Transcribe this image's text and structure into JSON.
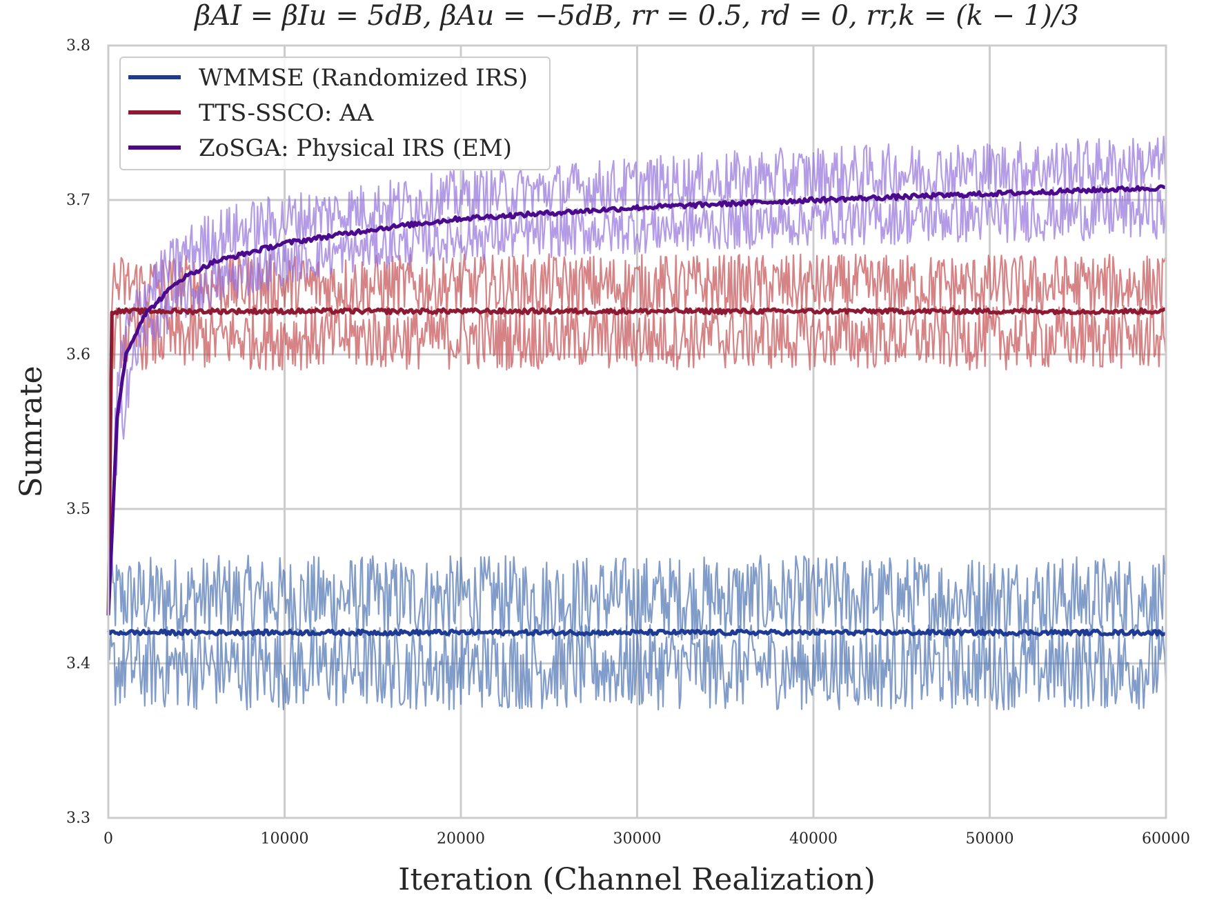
{
  "chart_data": {
    "type": "line",
    "title": "βAI = βIu = 5dB, βAu = −5dB, rr = 0.5, rd = 0, rr,k = (k − 1)/3",
    "xlabel": "Iteration (Channel Realization)",
    "ylabel": "Sumrate",
    "xlim": [
      0,
      60000
    ],
    "ylim": [
      3.3,
      3.8
    ],
    "xticks": [
      "0",
      "10000",
      "20000",
      "30000",
      "40000",
      "50000",
      "60000"
    ],
    "yticks": [
      "3.3",
      "3.4",
      "3.5",
      "3.6",
      "3.7",
      "3.8"
    ],
    "grid": true,
    "legend_position": "top-left",
    "series": [
      {
        "name": "WMMSE (Randomized IRS)",
        "color": "#1f3a93",
        "band_color": "#4c72b0",
        "x": [
          0,
          10000,
          20000,
          30000,
          40000,
          50000,
          60000
        ],
        "mean": [
          3.42,
          3.42,
          3.42,
          3.42,
          3.42,
          3.42,
          3.42
        ],
        "band_low": [
          3.37,
          3.37,
          3.37,
          3.37,
          3.37,
          3.37,
          3.37
        ],
        "band_high": [
          3.47,
          3.47,
          3.47,
          3.47,
          3.47,
          3.47,
          3.47
        ]
      },
      {
        "name": "TTS-SSCO: AA",
        "color": "#8b1a32",
        "band_color": "#c44e52",
        "x": [
          0,
          200,
          10000,
          20000,
          30000,
          40000,
          50000,
          60000
        ],
        "mean": [
          3.43,
          3.628,
          3.628,
          3.628,
          3.628,
          3.628,
          3.628,
          3.628
        ],
        "band_low": [
          3.43,
          3.59,
          3.59,
          3.59,
          3.59,
          3.59,
          3.59,
          3.59
        ],
        "band_high": [
          3.43,
          3.665,
          3.665,
          3.665,
          3.665,
          3.665,
          3.665,
          3.665
        ]
      },
      {
        "name": "ZoSGA: Physical IRS (EM)",
        "color": "#4b0a8c",
        "band_color": "#9370db",
        "x": [
          0,
          500,
          1000,
          2000,
          4000,
          6000,
          10000,
          15000,
          20000,
          30000,
          40000,
          50000,
          60000
        ],
        "mean": [
          3.43,
          3.56,
          3.6,
          3.625,
          3.648,
          3.66,
          3.672,
          3.681,
          3.688,
          3.695,
          3.7,
          3.704,
          3.708
        ],
        "band_low": [
          3.43,
          3.5,
          3.56,
          3.6,
          3.62,
          3.63,
          3.645,
          3.655,
          3.66,
          3.665,
          3.67,
          3.672,
          3.675
        ],
        "band_high": [
          3.43,
          3.6,
          3.63,
          3.655,
          3.68,
          3.695,
          3.705,
          3.712,
          3.72,
          3.728,
          3.735,
          3.738,
          3.742
        ]
      }
    ]
  }
}
